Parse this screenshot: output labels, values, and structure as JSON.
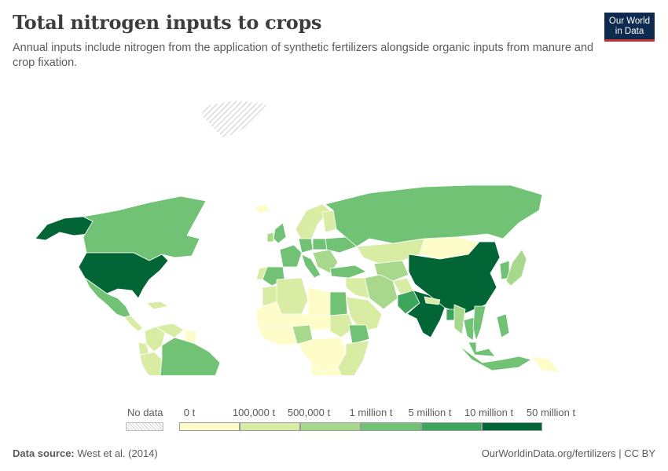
{
  "header": {
    "title": "Total nitrogen inputs to crops",
    "subtitle": "Annual inputs include nitrogen from the application of synthetic fertilizers alongside organic inputs from manure and crop fixation."
  },
  "logo": {
    "line1": "Our World",
    "line2": "in Data"
  },
  "legend": {
    "no_data_label": "No data",
    "ticks": [
      "0 t",
      "100,000 t",
      "500,000 t",
      "1 million t",
      "5 million t",
      "10 million t",
      "50 million t"
    ],
    "bin_colors": [
      "#fefcc9",
      "#d9eca4",
      "#a7d88c",
      "#72c275",
      "#3ea55c",
      "#026535"
    ],
    "no_data_color": "#e6e6e6"
  },
  "footer": {
    "source_label": "Data source:",
    "source_value": "West et al. (2014)",
    "right_text": "OurWorldinData.org/fertilizers | CC BY"
  },
  "map_regions": [
    {
      "name": "Alaska",
      "bin": 5
    },
    {
      "name": "Canada",
      "bin": 3
    },
    {
      "name": "Greenland",
      "bin": -1
    },
    {
      "name": "United States",
      "bin": 5
    },
    {
      "name": "Mexico",
      "bin": 3
    },
    {
      "name": "Central America",
      "bin": 1
    },
    {
      "name": "Caribbean",
      "bin": 1
    },
    {
      "name": "Colombia",
      "bin": 1
    },
    {
      "name": "Venezuela",
      "bin": 1
    },
    {
      "name": "Guianas",
      "bin": 0
    },
    {
      "name": "Ecuador",
      "bin": 1
    },
    {
      "name": "Peru",
      "bin": 1
    },
    {
      "name": "Brazil",
      "bin": 3
    },
    {
      "name": "Bolivia",
      "bin": 0
    },
    {
      "name": "Paraguay",
      "bin": 1
    },
    {
      "name": "Chile",
      "bin": 1
    },
    {
      "name": "Argentina",
      "bin": 3
    },
    {
      "name": "Uruguay",
      "bin": 2
    },
    {
      "name": "Iceland",
      "bin": 0
    },
    {
      "name": "United Kingdom",
      "bin": 3
    },
    {
      "name": "Ireland",
      "bin": 2
    },
    {
      "name": "Scandinavia",
      "bin": 1
    },
    {
      "name": "Finland",
      "bin": 1
    },
    {
      "name": "France",
      "bin": 3
    },
    {
      "name": "Spain",
      "bin": 3
    },
    {
      "name": "Portugal",
      "bin": 1
    },
    {
      "name": "Germany",
      "bin": 3
    },
    {
      "name": "Poland",
      "bin": 3
    },
    {
      "name": "Italy",
      "bin": 3
    },
    {
      "name": "Balkans",
      "bin": 2
    },
    {
      "name": "Ukraine",
      "bin": 3
    },
    {
      "name": "Turkey",
      "bin": 3
    },
    {
      "name": "Russia",
      "bin": 3
    },
    {
      "name": "Kazakhstan",
      "bin": 1
    },
    {
      "name": "Central Asia",
      "bin": 2
    },
    {
      "name": "Mongolia",
      "bin": 0
    },
    {
      "name": "China",
      "bin": 5
    },
    {
      "name": "Korea",
      "bin": 3
    },
    {
      "name": "Japan",
      "bin": 2
    },
    {
      "name": "Iran",
      "bin": 2
    },
    {
      "name": "Iraq and Syria",
      "bin": 1
    },
    {
      "name": "Saudi Arabia",
      "bin": 1
    },
    {
      "name": "Afghanistan",
      "bin": 1
    },
    {
      "name": "Pakistan",
      "bin": 4
    },
    {
      "name": "India",
      "bin": 5
    },
    {
      "name": "Nepal",
      "bin": 1
    },
    {
      "name": "Bangladesh",
      "bin": 4
    },
    {
      "name": "Myanmar",
      "bin": 2
    },
    {
      "name": "Thailand",
      "bin": 3
    },
    {
      "name": "Vietnam",
      "bin": 3
    },
    {
      "name": "Philippines",
      "bin": 3
    },
    {
      "name": "Malaysia",
      "bin": 3
    },
    {
      "name": "Indonesia",
      "bin": 3
    },
    {
      "name": "Papua New Guinea",
      "bin": 0
    },
    {
      "name": "Australia",
      "bin": 3
    },
    {
      "name": "New Zealand",
      "bin": 1
    },
    {
      "name": "Morocco",
      "bin": 1
    },
    {
      "name": "Algeria",
      "bin": 1
    },
    {
      "name": "Libya",
      "bin": 0
    },
    {
      "name": "Egypt",
      "bin": 3
    },
    {
      "name": "Sahel",
      "bin": 0
    },
    {
      "name": "Nigeria",
      "bin": 2
    },
    {
      "name": "West Africa",
      "bin": 0
    },
    {
      "name": "Sudan",
      "bin": 1
    },
    {
      "name": "Ethiopia",
      "bin": 3
    },
    {
      "name": "Central Africa",
      "bin": 0
    },
    {
      "name": "East Africa",
      "bin": 1
    },
    {
      "name": "Southern Africa",
      "bin": 0
    },
    {
      "name": "South Africa",
      "bin": 2
    },
    {
      "name": "Madagascar",
      "bin": 0
    }
  ]
}
